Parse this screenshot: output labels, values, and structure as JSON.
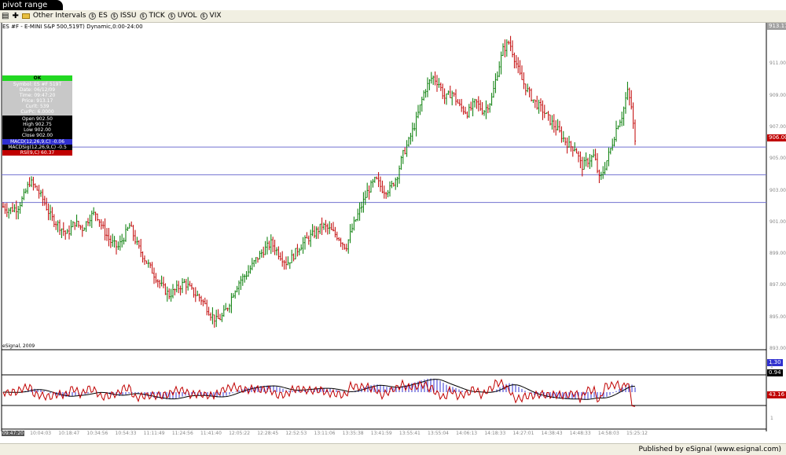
{
  "window": {
    "title": "pivot range"
  },
  "toolbar": {
    "other_intervals": "Other Intervals",
    "symbols": [
      {
        "label": "ES",
        "icon": "symbol-icon"
      },
      {
        "label": "ISSU",
        "icon": "symbol-icon"
      },
      {
        "label": "TICK",
        "icon": "symbol-icon"
      },
      {
        "label": "UVOL",
        "icon": "symbol-icon"
      },
      {
        "label": "VIX",
        "icon": "symbol-icon"
      }
    ]
  },
  "chart": {
    "header": "ES #F - E-MINI S&P 500,519T) Dynamic,0:00-24:00",
    "copyright": "eSignal, 2009",
    "top_price_badge": "913.17",
    "current_price": "906.00",
    "price_axis_labels": [
      "911.00",
      "909.00",
      "907.00",
      "905.00",
      "903.00",
      "901.00",
      "899.00",
      "897.00",
      "895.00",
      "893.00"
    ],
    "pivot_lines": [
      905.75,
      904.0,
      902.25
    ],
    "time_labels": [
      "09:47:20",
      "10:04:03",
      "10:18:47",
      "10:34:56",
      "10:54:33",
      "11:11:49",
      "11:24:56",
      "11:41:40",
      "12:05:22",
      "12:28:45",
      "12:52:53",
      "13:11:06",
      "13:35:38",
      "13:41:59",
      "13:55:41",
      "13:55:04",
      "14:06:13",
      "14:18:33",
      "14:27:01",
      "14:38:43",
      "14:48:33",
      "14:58:03",
      "15:25:12"
    ],
    "cursor_window": {
      "ok": "OK",
      "grey_rows": [
        "Symbol: ES #F 519T",
        "Date: 06/12/09",
        "Time: 09:47:20",
        "Price: 913.17",
        "Curlt: 539",
        "CurPc: 6.0000"
      ],
      "black_rows": [
        "Open 902.50",
        "High 902.75",
        "Low 902.00",
        "Close 902.00"
      ],
      "macd": "MACD(12,26,9,C) -0.06",
      "macd_sig": "MACDSig(12,26,9,C) -0.5",
      "rsi": "RSI(9,C) 60.37"
    },
    "indicator_badges": {
      "macd": "1.30",
      "sig": "0.94",
      "rsi": "43.16"
    },
    "colors": {
      "up": "#007a00",
      "down": "#c00000",
      "pivot": "#7070d0",
      "macd_hist": "#3030d0",
      "signal": "#000000",
      "rsi": "#c00000"
    }
  },
  "chart_data": {
    "type": "candlestick",
    "symbol": "ES #F",
    "pivot_levels": [
      905.75,
      904.0,
      902.25
    ],
    "close_path_x": [
      0,
      10,
      22,
      30,
      38,
      48,
      55,
      65,
      75,
      85,
      95,
      105,
      115,
      122,
      130,
      140,
      150,
      158,
      165,
      175,
      185,
      195,
      205,
      215,
      225,
      235,
      245,
      255,
      262,
      268,
      275,
      282,
      290,
      298,
      305,
      315,
      325,
      335,
      345,
      355,
      365,
      372,
      380,
      390,
      400,
      410,
      420,
      430,
      440,
      448,
      458,
      468,
      478,
      488,
      496,
      505,
      512,
      520,
      530,
      540,
      550,
      558,
      566,
      575,
      585,
      595,
      605,
      615,
      625,
      632,
      640,
      648,
      655,
      662,
      670,
      680,
      690,
      700,
      710,
      718,
      725,
      732,
      740,
      748,
      756,
      763,
      770,
      778,
      785,
      792,
      798,
      803,
      808
    ],
    "close_path_y": [
      902.1,
      901.8,
      901.9,
      902.6,
      903.6,
      903.0,
      902.4,
      901.3,
      900.8,
      900.2,
      901.0,
      900.6,
      901.4,
      901.6,
      900.7,
      899.8,
      899.4,
      900.1,
      900.8,
      899.5,
      898.6,
      897.8,
      897.0,
      896.4,
      896.8,
      897.2,
      896.6,
      896.2,
      895.7,
      895.2,
      894.8,
      895.0,
      895.7,
      896.7,
      897.3,
      897.8,
      898.6,
      899.2,
      899.7,
      899.0,
      898.4,
      898.8,
      899.4,
      899.9,
      900.3,
      900.8,
      900.5,
      900.1,
      899.4,
      900.6,
      901.8,
      903.0,
      903.7,
      903.0,
      903.1,
      903.9,
      905.2,
      906.1,
      907.5,
      909.3,
      910.2,
      909.8,
      908.8,
      909.2,
      908.3,
      907.9,
      908.6,
      908.0,
      908.7,
      910.3,
      911.9,
      912.4,
      911.3,
      910.2,
      909.4,
      908.6,
      908.1,
      907.4,
      906.8,
      906.2,
      905.8,
      905.7,
      904.5,
      904.9,
      905.2,
      903.6,
      904.6,
      905.8,
      907.1,
      907.8,
      909.3,
      908.4,
      906.0
    ],
    "y_axis_labels": [
      911,
      909,
      907,
      905,
      903,
      901,
      899,
      897,
      895,
      893
    ],
    "indicators": {
      "macd_last": 1.3,
      "signal_last": 0.94,
      "rsi_last": 43.16
    }
  },
  "footer": {
    "published": "Published by eSignal (www.esignal.com)"
  }
}
